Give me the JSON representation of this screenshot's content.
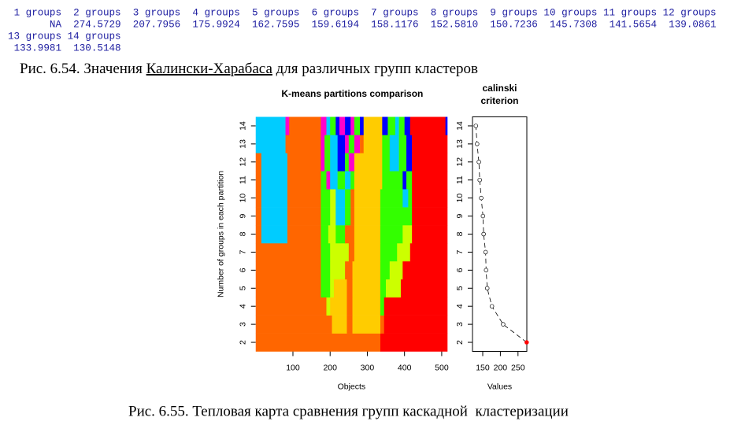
{
  "output": {
    "headers": [
      "1 groups",
      "2 groups",
      "3 groups",
      "4 groups",
      "5 groups",
      "6 groups",
      "7 groups",
      "8 groups",
      "9 groups",
      "10 groups",
      "11 groups",
      "12 groups",
      "13 groups",
      "14 groups"
    ],
    "values": [
      "NA",
      "274.5729",
      "207.7956",
      "175.9924",
      "162.7595",
      "159.6194",
      "158.1176",
      "152.5810",
      "150.7236",
      "145.7308",
      "141.5654",
      "139.0861",
      "133.9981",
      "130.5148"
    ]
  },
  "caption_top": [
    "Рис. 6.54. Значения ",
    "Калински-Харабаса",
    " для различных групп кластеров"
  ],
  "chart_data": [
    {
      "type": "heatmap",
      "title": "K-means partitions comparison",
      "x_label": "Objects",
      "y_label": "Number of groups in each partition",
      "xlim": [
        0,
        515
      ],
      "xticks": [
        100,
        200,
        300,
        400,
        500
      ],
      "ylim": [
        1.5,
        14.5
      ],
      "yticks": [
        2,
        3,
        4,
        5,
        6,
        7,
        8,
        9,
        10,
        11,
        12,
        13,
        14
      ],
      "rows": [
        {
          "group": 2,
          "segments": [
            [
              0,
              335,
              "#ff6600"
            ],
            [
              335,
              515,
              "#ff0000"
            ]
          ]
        },
        {
          "group": 3,
          "segments": [
            [
              0,
              205,
              "#ff6600"
            ],
            [
              205,
              245,
              "#ffcc00"
            ],
            [
              245,
              260,
              "#ff6600"
            ],
            [
              260,
              335,
              "#ffcc00"
            ],
            [
              335,
              345,
              "#ff6600"
            ],
            [
              345,
              515,
              "#ff0000"
            ]
          ]
        },
        {
          "group": 4,
          "segments": [
            [
              0,
              190,
              "#ff6600"
            ],
            [
              190,
              200,
              "#ccff00"
            ],
            [
              200,
              245,
              "#ffcc00"
            ],
            [
              245,
              260,
              "#ff6600"
            ],
            [
              260,
              335,
              "#ffcc00"
            ],
            [
              335,
              345,
              "#33ff00"
            ],
            [
              345,
              515,
              "#ff0000"
            ]
          ]
        },
        {
          "group": 5,
          "segments": [
            [
              0,
              175,
              "#ff6600"
            ],
            [
              175,
              200,
              "#33ff00"
            ],
            [
              200,
              210,
              "#ccff00"
            ],
            [
              210,
              245,
              "#ffcc00"
            ],
            [
              245,
              260,
              "#ff6600"
            ],
            [
              260,
              335,
              "#ffcc00"
            ],
            [
              335,
              350,
              "#33ff00"
            ],
            [
              350,
              390,
              "#ccff00"
            ],
            [
              390,
              515,
              "#ff0000"
            ]
          ]
        },
        {
          "group": 6,
          "segments": [
            [
              0,
              175,
              "#ff6600"
            ],
            [
              175,
              200,
              "#33ff00"
            ],
            [
              200,
              240,
              "#ccff00"
            ],
            [
              240,
              260,
              "#ff6600"
            ],
            [
              260,
              335,
              "#ffcc00"
            ],
            [
              335,
              360,
              "#33ff00"
            ],
            [
              360,
              395,
              "#ccff00"
            ],
            [
              395,
              515,
              "#ff0000"
            ]
          ]
        },
        {
          "group": 7,
          "segments": [
            [
              0,
              175,
              "#ff6600"
            ],
            [
              175,
              200,
              "#33ff00"
            ],
            [
              200,
              250,
              "#ccff00"
            ],
            [
              250,
              265,
              "#ff6600"
            ],
            [
              265,
              335,
              "#ffcc00"
            ],
            [
              335,
              380,
              "#33ff00"
            ],
            [
              380,
              415,
              "#ccff00"
            ],
            [
              415,
              515,
              "#ff0000"
            ]
          ]
        },
        {
          "group": 8,
          "segments": [
            [
              0,
              15,
              "#ff6600"
            ],
            [
              15,
              85,
              "#00ccff"
            ],
            [
              85,
              175,
              "#ff6600"
            ],
            [
              175,
              195,
              "#33ff00"
            ],
            [
              195,
              215,
              "#ccff00"
            ],
            [
              215,
              240,
              "#33ff00"
            ],
            [
              240,
              265,
              "#ff6600"
            ],
            [
              265,
              335,
              "#ffcc00"
            ],
            [
              335,
              395,
              "#33ff00"
            ],
            [
              395,
              420,
              "#ccff00"
            ],
            [
              420,
              515,
              "#ff0000"
            ]
          ]
        },
        {
          "group": 9,
          "segments": [
            [
              0,
              15,
              "#ff6600"
            ],
            [
              15,
              85,
              "#00ccff"
            ],
            [
              85,
              175,
              "#ff6600"
            ],
            [
              175,
              200,
              "#33ff00"
            ],
            [
              200,
              215,
              "#ccff00"
            ],
            [
              215,
              240,
              "#00ccff"
            ],
            [
              240,
              255,
              "#33ff00"
            ],
            [
              255,
              265,
              "#ff6600"
            ],
            [
              265,
              335,
              "#ffcc00"
            ],
            [
              335,
              420,
              "#33ff00"
            ],
            [
              420,
              515,
              "#ff0000"
            ]
          ]
        },
        {
          "group": 10,
          "segments": [
            [
              0,
              15,
              "#ff6600"
            ],
            [
              15,
              85,
              "#00ccff"
            ],
            [
              85,
              175,
              "#ff6600"
            ],
            [
              175,
              200,
              "#33ff00"
            ],
            [
              200,
              215,
              "#ccff00"
            ],
            [
              215,
              240,
              "#00ccff"
            ],
            [
              240,
              255,
              "#33ff00"
            ],
            [
              255,
              265,
              "#ff6600"
            ],
            [
              265,
              335,
              "#ffcc00"
            ],
            [
              335,
              395,
              "#33ff00"
            ],
            [
              395,
              410,
              "#00ccff"
            ],
            [
              410,
              420,
              "#33ff00"
            ],
            [
              420,
              515,
              "#ff0000"
            ]
          ]
        },
        {
          "group": 11,
          "segments": [
            [
              0,
              15,
              "#ff6600"
            ],
            [
              15,
              85,
              "#00ccff"
            ],
            [
              85,
              175,
              "#ff6600"
            ],
            [
              175,
              190,
              "#33ff00"
            ],
            [
              190,
              200,
              "#ff00cc"
            ],
            [
              200,
              220,
              "#00ccff"
            ],
            [
              220,
              240,
              "#33ff00"
            ],
            [
              240,
              255,
              "#00ccff"
            ],
            [
              255,
              265,
              "#33ff00"
            ],
            [
              265,
              340,
              "#ffcc00"
            ],
            [
              340,
              395,
              "#33ff00"
            ],
            [
              395,
              405,
              "#0000ff"
            ],
            [
              405,
              420,
              "#33ff00"
            ],
            [
              420,
              515,
              "#ff0000"
            ]
          ]
        },
        {
          "group": 12,
          "segments": [
            [
              0,
              15,
              "#ff6600"
            ],
            [
              15,
              85,
              "#00ccff"
            ],
            [
              85,
              175,
              "#ff6600"
            ],
            [
              175,
              185,
              "#ff00cc"
            ],
            [
              185,
              200,
              "#33ff00"
            ],
            [
              200,
              220,
              "#00ccff"
            ],
            [
              220,
              240,
              "#0000ff"
            ],
            [
              240,
              250,
              "#33ff00"
            ],
            [
              250,
              265,
              "#ff00cc"
            ],
            [
              265,
              340,
              "#ffcc00"
            ],
            [
              340,
              360,
              "#33ff00"
            ],
            [
              360,
              385,
              "#00ccff"
            ],
            [
              385,
              405,
              "#33ff00"
            ],
            [
              405,
              420,
              "#0000ff"
            ],
            [
              420,
              515,
              "#ff0000"
            ]
          ]
        },
        {
          "group": 13,
          "segments": [
            [
              0,
              80,
              "#00ccff"
            ],
            [
              80,
              175,
              "#ff6600"
            ],
            [
              175,
              185,
              "#ff00cc"
            ],
            [
              185,
              200,
              "#33ff00"
            ],
            [
              200,
              220,
              "#00ccff"
            ],
            [
              220,
              240,
              "#0000ff"
            ],
            [
              240,
              250,
              "#ff00cc"
            ],
            [
              250,
              265,
              "#33ff00"
            ],
            [
              265,
              280,
              "#ff00cc"
            ],
            [
              280,
              290,
              "#ff6600"
            ],
            [
              290,
              340,
              "#ffcc00"
            ],
            [
              340,
              360,
              "#33ff00"
            ],
            [
              360,
              385,
              "#00ccff"
            ],
            [
              385,
              405,
              "#33ff00"
            ],
            [
              405,
              420,
              "#0000ff"
            ],
            [
              420,
              515,
              "#ff0000"
            ]
          ]
        },
        {
          "group": 14,
          "segments": [
            [
              0,
              80,
              "#00ccff"
            ],
            [
              80,
              90,
              "#ff00cc"
            ],
            [
              90,
              175,
              "#ff6600"
            ],
            [
              175,
              190,
              "#ff00cc"
            ],
            [
              190,
              200,
              "#00ccff"
            ],
            [
              200,
              215,
              "#33ff00"
            ],
            [
              215,
              225,
              "#0000ff"
            ],
            [
              225,
              240,
              "#ff00cc"
            ],
            [
              240,
              255,
              "#0000ff"
            ],
            [
              255,
              265,
              "#ff00cc"
            ],
            [
              265,
              280,
              "#33ff00"
            ],
            [
              280,
              290,
              "#0000ff"
            ],
            [
              290,
              340,
              "#ffcc00"
            ],
            [
              340,
              355,
              "#0000ff"
            ],
            [
              355,
              375,
              "#33ff00"
            ],
            [
              375,
              385,
              "#00ccff"
            ],
            [
              385,
              400,
              "#33ff00"
            ],
            [
              400,
              415,
              "#0000ff"
            ],
            [
              415,
              510,
              "#ff0000"
            ],
            [
              510,
              515,
              "#0000ff"
            ]
          ]
        }
      ]
    },
    {
      "type": "scatter",
      "title": [
        "calinski",
        "criterion"
      ],
      "x_label": "Values",
      "xlim": [
        121,
        275
      ],
      "xticks": [
        150,
        200,
        250
      ],
      "ylim": [
        1.5,
        14.5
      ],
      "yticks": [
        2,
        3,
        4,
        5,
        6,
        7,
        8,
        9,
        10,
        11,
        12,
        13,
        14
      ],
      "x": [
        274.5729,
        207.7956,
        175.9924,
        162.7595,
        159.6194,
        158.1176,
        152.581,
        150.7236,
        145.7308,
        141.5654,
        139.0861,
        133.9981,
        130.5148
      ],
      "y": [
        2,
        3,
        4,
        5,
        6,
        7,
        8,
        9,
        10,
        11,
        12,
        13,
        14
      ],
      "point_colors": [
        "#ff0000",
        "#ffffff",
        "#ffffff",
        "#ffffff",
        "#ffffff",
        "#ffffff",
        "#ffffff",
        "#ffffff",
        "#ffffff",
        "#ffffff",
        "#ffffff",
        "#ffffff",
        "#ffffff"
      ],
      "line_style": "dashed"
    }
  ],
  "caption_bottom": "Рис. 6.55. Тепловая карта сравнения групп каскадной  кластеризации"
}
